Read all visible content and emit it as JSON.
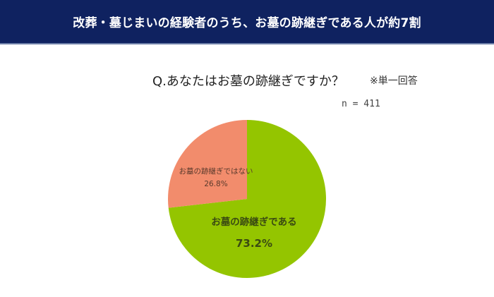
{
  "header": {
    "title": "改葬・墓じまいの経験者のうち、お墓の跡継ぎである人が約7割"
  },
  "question": {
    "text": "Q.あなたはお墓の跡継ぎですか？",
    "note": "※単一回答",
    "sample": "n = 411"
  },
  "colors": {
    "banner": "#0f2260",
    "yes": "#94c500",
    "no": "#f28c6c"
  },
  "chart_data": {
    "type": "pie",
    "title": "Q.あなたはお墓の跡継ぎですか？",
    "subtitle": "※単一回答 n = 411",
    "categories": [
      "お墓の跡継ぎである",
      "お墓の跡継ぎではない"
    ],
    "values": [
      73.2,
      26.8
    ],
    "unit": "%",
    "colors": [
      "#94c500",
      "#f28c6c"
    ],
    "start_angle": "12 o'clock",
    "legend": "none (labels inside slices)"
  },
  "labels": {
    "yes_label": "お墓の跡継ぎである",
    "yes_value": "73.2%",
    "no_label": "お墓の跡継ぎではない",
    "no_value": "26.8%"
  }
}
